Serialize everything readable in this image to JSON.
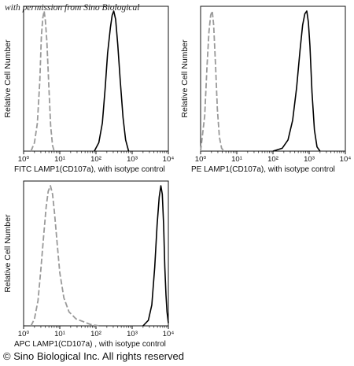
{
  "watermark": "with permission from Sino Biological",
  "footer": "© Sino Biological Inc. All rights reserved",
  "chart_data": [
    {
      "type": "line",
      "title": "",
      "xlabel": "FITC LAMP1(CD107a), with isotype control",
      "ylabel": "Relative Cell Number",
      "x_scale": "log",
      "xlim": [
        1,
        10000
      ],
      "x_tick_labels": [
        "10⁰",
        "10¹",
        "10²",
        "10³",
        "10⁴"
      ],
      "ylim": [
        0,
        1
      ],
      "series": [
        {
          "style": "dashed",
          "color": "#9a9a9a",
          "points": [
            [
              1.6,
              0
            ],
            [
              2.0,
              0.06
            ],
            [
              2.4,
              0.2
            ],
            [
              2.8,
              0.5
            ],
            [
              3.1,
              0.82
            ],
            [
              3.4,
              0.95
            ],
            [
              3.7,
              1.0
            ],
            [
              4.0,
              0.93
            ],
            [
              4.4,
              0.78
            ],
            [
              5.0,
              0.45
            ],
            [
              5.6,
              0.18
            ],
            [
              6.3,
              0.04
            ],
            [
              7,
              0
            ]
          ]
        },
        {
          "style": "solid",
          "color": "#000000",
          "points": [
            [
              90,
              0
            ],
            [
              120,
              0.06
            ],
            [
              150,
              0.2
            ],
            [
              180,
              0.45
            ],
            [
              210,
              0.7
            ],
            [
              250,
              0.88
            ],
            [
              280,
              0.97
            ],
            [
              310,
              1.0
            ],
            [
              350,
              0.94
            ],
            [
              400,
              0.76
            ],
            [
              470,
              0.5
            ],
            [
              560,
              0.24
            ],
            [
              660,
              0.08
            ],
            [
              800,
              0
            ]
          ]
        }
      ]
    },
    {
      "type": "line",
      "title": "",
      "xlabel": "PE LAMP1(CD107a), with isotype control",
      "ylabel": "Relative Cell Number",
      "x_scale": "log",
      "xlim": [
        1,
        10000
      ],
      "x_tick_labels": [
        "10⁰",
        "10¹",
        "10²",
        "10³",
        "10⁴"
      ],
      "ylim": [
        0,
        1
      ],
      "series": [
        {
          "style": "dashed",
          "color": "#9a9a9a",
          "points": [
            [
              1.0,
              0
            ],
            [
              1.3,
              0.25
            ],
            [
              1.5,
              0.6
            ],
            [
              1.7,
              0.85
            ],
            [
              1.9,
              0.97
            ],
            [
              2.1,
              1.0
            ],
            [
              2.3,
              0.9
            ],
            [
              2.6,
              0.6
            ],
            [
              2.9,
              0.3
            ],
            [
              3.3,
              0.1
            ],
            [
              3.8,
              0.02
            ],
            [
              4.5,
              0
            ]
          ]
        },
        {
          "style": "solid",
          "color": "#000000",
          "points": [
            [
              100,
              0
            ],
            [
              180,
              0.02
            ],
            [
              260,
              0.08
            ],
            [
              350,
              0.22
            ],
            [
              450,
              0.45
            ],
            [
              560,
              0.72
            ],
            [
              660,
              0.9
            ],
            [
              760,
              0.98
            ],
            [
              860,
              1.0
            ],
            [
              950,
              0.92
            ],
            [
              1050,
              0.75
            ],
            [
              1200,
              0.42
            ],
            [
              1400,
              0.15
            ],
            [
              1650,
              0.03
            ],
            [
              2000,
              0
            ]
          ]
        }
      ]
    },
    {
      "type": "line",
      "title": "",
      "xlabel": "APC LAMP1(CD107a) , with isotype control",
      "ylabel": "Relative Cell Number",
      "x_scale": "log",
      "xlim": [
        1,
        10000
      ],
      "x_tick_labels": [
        "10⁰",
        "10¹",
        "10²",
        "10³",
        "10⁴"
      ],
      "ylim": [
        0,
        1
      ],
      "series": [
        {
          "style": "dashed",
          "color": "#9a9a9a",
          "points": [
            [
              1.6,
              0
            ],
            [
              2.0,
              0.05
            ],
            [
              2.5,
              0.18
            ],
            [
              3.0,
              0.4
            ],
            [
              3.6,
              0.65
            ],
            [
              4.2,
              0.85
            ],
            [
              4.8,
              0.96
            ],
            [
              5.5,
              1.0
            ],
            [
              6.3,
              0.94
            ],
            [
              7.2,
              0.8
            ],
            [
              8.5,
              0.58
            ],
            [
              10,
              0.38
            ],
            [
              13,
              0.2
            ],
            [
              18,
              0.1
            ],
            [
              28,
              0.05
            ],
            [
              45,
              0.03
            ],
            [
              70,
              0.01
            ],
            [
              120,
              0
            ]
          ]
        },
        {
          "style": "solid",
          "color": "#000000",
          "points": [
            [
              2000,
              0
            ],
            [
              2800,
              0.04
            ],
            [
              3500,
              0.15
            ],
            [
              4200,
              0.42
            ],
            [
              4900,
              0.72
            ],
            [
              5600,
              0.92
            ],
            [
              6200,
              1.0
            ],
            [
              6800,
              0.94
            ],
            [
              7400,
              0.72
            ],
            [
              8000,
              0.42
            ],
            [
              8600,
              0.22
            ],
            [
              9200,
              0.1
            ],
            [
              10000,
              0.02
            ]
          ]
        }
      ]
    }
  ]
}
